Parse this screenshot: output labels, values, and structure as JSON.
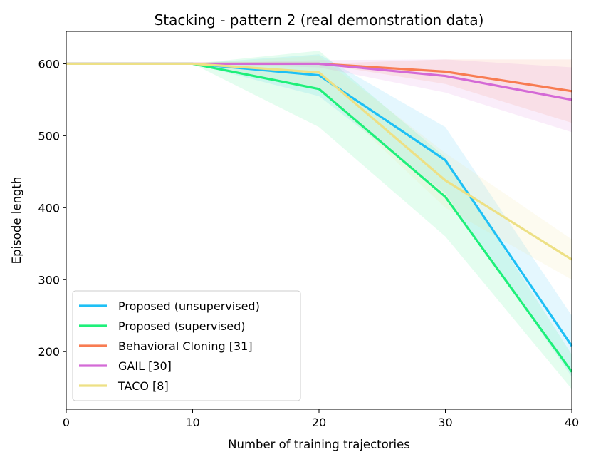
{
  "chart_data": {
    "type": "line",
    "title": "Stacking - pattern 2 (real demonstration data)",
    "xlabel": "Number of training trajectories",
    "ylabel": "Episode length",
    "x": [
      0,
      10,
      20,
      30,
      40
    ],
    "xlim": [
      0,
      40
    ],
    "ylim": [
      120,
      645
    ],
    "xticks": [
      0,
      10,
      20,
      30,
      40
    ],
    "yticks": [
      200,
      300,
      400,
      500,
      600
    ],
    "grid": false,
    "legend_position": "lower-left",
    "series": [
      {
        "name": "Proposed (unsupervised)",
        "color": "#1ec0f5",
        "values": [
          600,
          600,
          584,
          466,
          208
        ],
        "lower": [
          600,
          600,
          555,
          420,
          165
        ],
        "upper": [
          600,
          600,
          613,
          512,
          250
        ]
      },
      {
        "name": "Proposed (supervised)",
        "color": "#1ef07a",
        "values": [
          600,
          600,
          565,
          415,
          172
        ],
        "lower": [
          600,
          600,
          512,
          360,
          148
        ],
        "upper": [
          600,
          600,
          618,
          470,
          196
        ]
      },
      {
        "name": "Behavioral Cloning [31]",
        "color": "#f87c52",
        "values": [
          600,
          600,
          600,
          589,
          562
        ],
        "lower": [
          600,
          600,
          600,
          572,
          518
        ],
        "upper": [
          600,
          600,
          600,
          606,
          606
        ]
      },
      {
        "name": "GAIL [30]",
        "color": "#d46ad6",
        "values": [
          600,
          600,
          600,
          583,
          550
        ],
        "lower": [
          600,
          600,
          595,
          560,
          505
        ],
        "upper": [
          600,
          600,
          605,
          606,
          595
        ]
      },
      {
        "name": "TACO [8]",
        "color": "#ede085",
        "values": [
          600,
          600,
          588,
          438,
          328
        ],
        "lower": [
          600,
          600,
          565,
          400,
          300
        ],
        "upper": [
          600,
          600,
          611,
          476,
          356
        ]
      }
    ]
  }
}
